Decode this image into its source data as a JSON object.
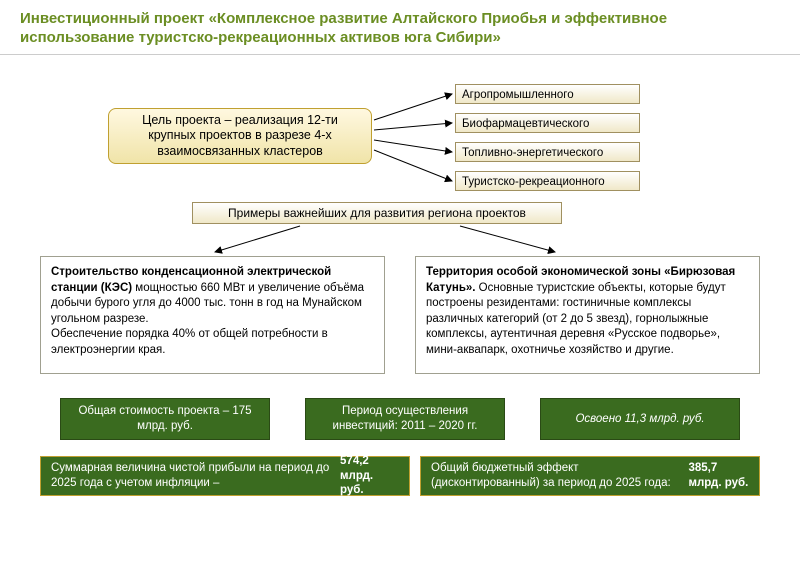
{
  "title": "Инвестиционный проект «Комплексное развитие Алтайского Приобья и эффективное использование туристско-рекреационных активов юга Сибири»",
  "goal": "Цель проекта – реализация 12-ти крупных проектов в разрезе 4-х взаимосвязанных кластеров",
  "clusters": {
    "c0": "Агропромышленного",
    "c1": "Биофармацевтического",
    "c2": "Топливно-энергетического",
    "c3": "Туристско-рекреационного"
  },
  "examples_header": "Примеры важнейших для развития региона проектов",
  "project_left": "<b>Строительство конденсационной электрической станции (КЭС)</b> мощностью 660 МВт и увеличение объёма добычи бурого угля до 4000 тыс. тонн в год на Мунайском угольном разрезе.<br>Обеспечение порядка 40% от общей потребности в электроэнергии края.",
  "project_right": "<b>Территория особой экономической зоны «Бирюзовая Катунь».</b> Основные туристские объекты, которые будут построены резидентами: гостиничные комплексы различных категорий (от 2 до 5 звезд), горнолыжные комплексы, аутентичная деревня «Русское подворье», мини-аквапарк, охотничье хозяйство и другие.",
  "summary": {
    "cost": "Общая стоимость проекта – 175 млрд. руб.",
    "period": "Период осуществления инвестиций: 2011 – 2020 гг.",
    "done": "Освоено 11,3 млрд. руб.",
    "profit": "Суммарная величина чистой прибыли на период до 2025 года с учетом инфляции – <b>574,2 млрд. руб.</b>",
    "budget": "Общий бюджетный эффект (дисконтированный) за период до 2025 года: <b>385,7 млрд. руб.</b>"
  },
  "colors": {
    "title": "#6b8e23",
    "green_box_bg": "#3a6b1f",
    "cream_border": "#a09060",
    "goal_border": "#c0a030"
  },
  "diagram": {
    "type": "flowchart",
    "arrows": [
      {
        "from": "goal",
        "to": "cluster-0"
      },
      {
        "from": "goal",
        "to": "cluster-1"
      },
      {
        "from": "goal",
        "to": "cluster-2"
      },
      {
        "from": "goal",
        "to": "cluster-3"
      },
      {
        "from": "examples",
        "to": "project-left"
      },
      {
        "from": "examples",
        "to": "project-right"
      }
    ],
    "arrow_color": "#000000"
  }
}
